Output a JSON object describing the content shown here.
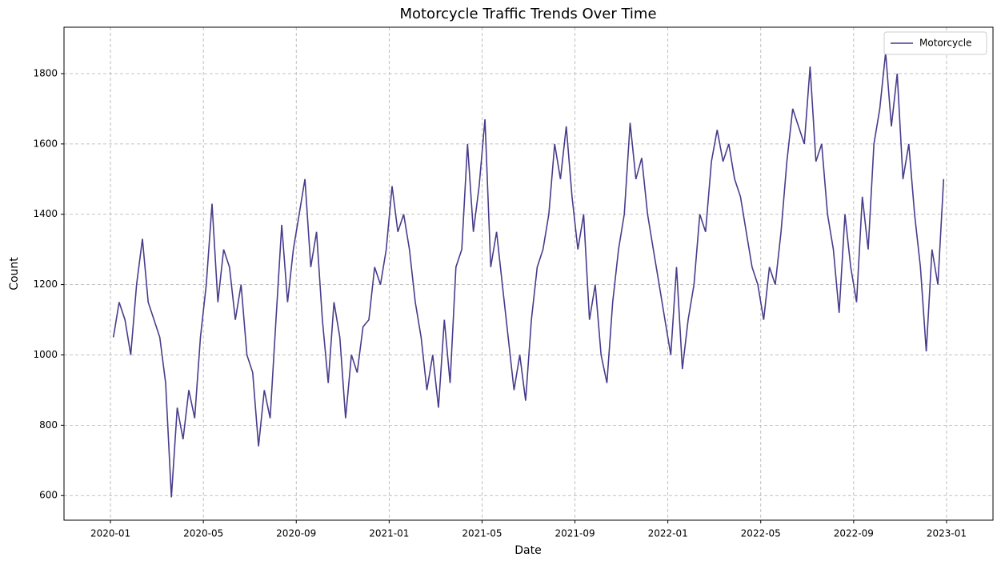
{
  "chart_data": {
    "type": "line",
    "title": "Motorcycle Traffic Trends Over Time",
    "x_label": "Date",
    "y_label": "Count",
    "x": [
      "2020-01",
      "2020-01",
      "2020-01",
      "2020-01",
      "2020-02",
      "2020-02",
      "2020-02",
      "2020-02",
      "2020-03",
      "2020-03",
      "2020-03",
      "2020-03",
      "2020-04",
      "2020-04",
      "2020-04",
      "2020-04",
      "2020-05",
      "2020-05",
      "2020-05",
      "2020-05",
      "2020-06",
      "2020-06",
      "2020-06",
      "2020-06",
      "2020-07",
      "2020-07",
      "2020-07",
      "2020-07",
      "2020-08",
      "2020-08",
      "2020-08",
      "2020-08",
      "2020-09",
      "2020-09",
      "2020-09",
      "2020-09",
      "2020-10",
      "2020-10",
      "2020-10",
      "2020-10",
      "2020-11",
      "2020-11",
      "2020-11",
      "2020-11",
      "2020-12",
      "2020-12",
      "2020-12",
      "2020-12",
      "2021-01",
      "2021-01",
      "2021-01",
      "2021-01",
      "2021-02",
      "2021-02",
      "2021-02",
      "2021-02",
      "2021-03",
      "2021-03",
      "2021-03",
      "2021-03",
      "2021-04",
      "2021-04",
      "2021-04",
      "2021-04",
      "2021-05",
      "2021-05",
      "2021-05",
      "2021-05",
      "2021-06",
      "2021-06",
      "2021-06",
      "2021-06",
      "2021-07",
      "2021-07",
      "2021-07",
      "2021-07",
      "2021-08",
      "2021-08",
      "2021-08",
      "2021-08",
      "2021-09",
      "2021-09",
      "2021-09",
      "2021-09",
      "2021-10",
      "2021-10",
      "2021-10",
      "2021-10",
      "2021-11",
      "2021-11",
      "2021-11",
      "2021-11",
      "2021-12",
      "2021-12",
      "2021-12",
      "2021-12",
      "2022-01",
      "2022-01",
      "2022-01",
      "2022-01",
      "2022-02",
      "2022-02",
      "2022-02",
      "2022-02",
      "2022-03",
      "2022-03",
      "2022-03",
      "2022-03",
      "2022-04",
      "2022-04",
      "2022-04",
      "2022-04",
      "2022-05",
      "2022-05",
      "2022-05",
      "2022-05",
      "2022-06",
      "2022-06",
      "2022-06",
      "2022-06",
      "2022-07",
      "2022-07",
      "2022-07",
      "2022-07",
      "2022-08",
      "2022-08",
      "2022-08",
      "2022-08",
      "2022-09",
      "2022-09",
      "2022-09",
      "2022-09",
      "2022-10",
      "2022-10",
      "2022-10",
      "2022-10",
      "2022-11",
      "2022-11",
      "2022-11",
      "2022-11",
      "2022-12",
      "2022-12",
      "2022-12",
      "2022-12"
    ],
    "series": [
      {
        "name": "Motorcycle",
        "color": "#483d8b",
        "values": [
          1050,
          1150,
          1100,
          1000,
          1200,
          1330,
          1150,
          1100,
          1050,
          920,
          595,
          850,
          760,
          900,
          820,
          1050,
          1200,
          1430,
          1150,
          1300,
          1250,
          1100,
          1200,
          1000,
          950,
          740,
          900,
          820,
          1100,
          1370,
          1150,
          1300,
          1400,
          1500,
          1250,
          1350,
          1100,
          920,
          1150,
          1050,
          820,
          1000,
          950,
          1080,
          1100,
          1250,
          1200,
          1300,
          1480,
          1350,
          1400,
          1300,
          1150,
          1050,
          900,
          1000,
          850,
          1100,
          920,
          1250,
          1300,
          1600,
          1350,
          1480,
          1670,
          1250,
          1350,
          1200,
          1050,
          900,
          1000,
          870,
          1100,
          1250,
          1300,
          1400,
          1600,
          1500,
          1650,
          1450,
          1300,
          1400,
          1100,
          1200,
          1000,
          920,
          1150,
          1300,
          1400,
          1660,
          1500,
          1560,
          1400,
          1300,
          1200,
          1100,
          1000,
          1250,
          960,
          1100,
          1200,
          1400,
          1350,
          1550,
          1640,
          1550,
          1600,
          1500,
          1450,
          1350,
          1250,
          1200,
          1100,
          1250,
          1200,
          1350,
          1550,
          1700,
          1650,
          1600,
          1820,
          1550,
          1600,
          1400,
          1300,
          1120,
          1400,
          1250,
          1150,
          1450,
          1300,
          1600,
          1700,
          1860,
          1650,
          1800,
          1500,
          1600,
          1400,
          1250,
          1010,
          1300,
          1200,
          1500
        ]
      }
    ],
    "xlim": [
      "2019-11",
      "2023-03"
    ],
    "xticks": [
      "2020-01",
      "2020-05",
      "2020-09",
      "2021-01",
      "2021-05",
      "2021-09",
      "2022-01",
      "2022-05",
      "2022-09",
      "2023-01"
    ],
    "ylim": [
      530,
      1932
    ],
    "yticks": [
      600,
      800,
      1000,
      1200,
      1400,
      1600,
      1800
    ],
    "grid": true,
    "legend": "upper right"
  }
}
